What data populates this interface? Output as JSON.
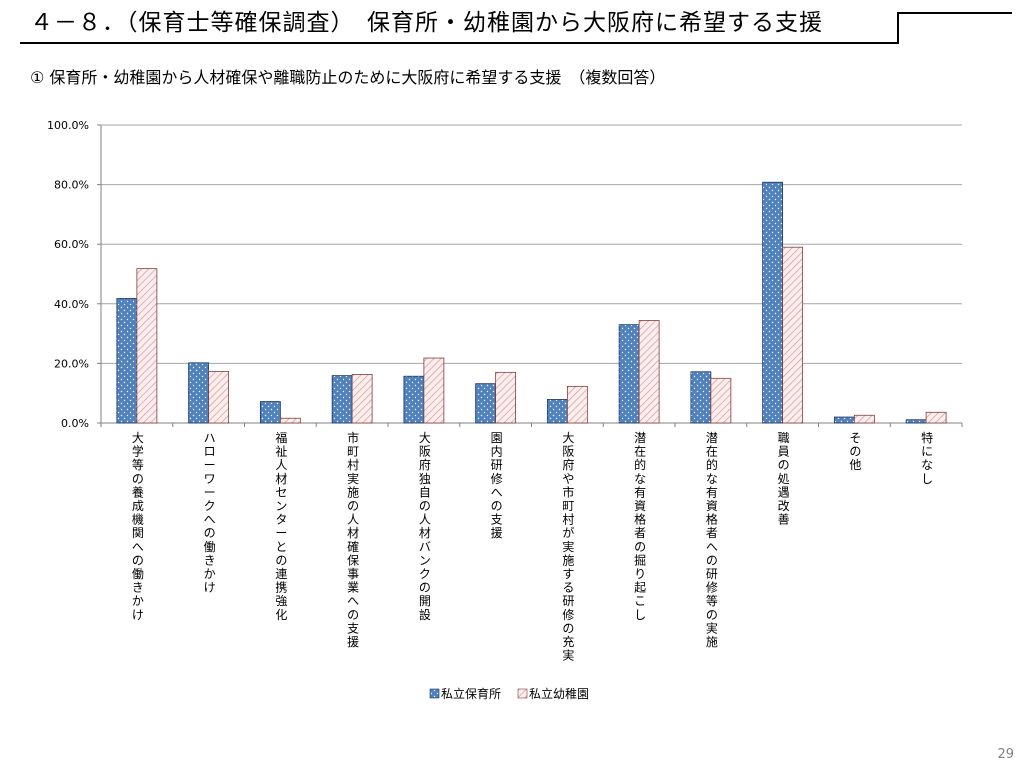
{
  "header": {
    "title": "４－８．（保育士等確保調査）　保育所・幼稚園から大阪府に希望する支援",
    "page_number": "29"
  },
  "chart_data": {
    "type": "bar",
    "title": "① 保育所・幼稚園から人材確保や離職防止のために大阪府に希望する支援　（複数回答）",
    "categories": [
      "大学等の養成機関への働きかけ",
      "ハローワークへの働きかけ",
      "福祉人材センターとの連携強化",
      "市町村実施の人材確保事業への支援",
      "大阪府独自の人材バンクの開設",
      "園内研修への支援",
      "大阪府や市町村が実施する研修の充実",
      "潜在的な有資格者の掘り起こし",
      "潜在的な有資格者への研修等の実施",
      "職員の処遇改善",
      "その他",
      "特になし"
    ],
    "series": [
      {
        "name": "私立保育所",
        "color": "#4f81bd",
        "values": [
          41.8,
          20.2,
          7.2,
          15.9,
          15.7,
          13.2,
          7.9,
          33.0,
          17.2,
          80.8,
          2.0,
          1.1
        ]
      },
      {
        "name": "私立幼稚園",
        "color": "#f2dcdb",
        "values": [
          51.8,
          17.3,
          1.6,
          16.3,
          21.8,
          17.0,
          12.3,
          34.4,
          15.0,
          59.0,
          2.6,
          3.6
        ]
      }
    ],
    "ylim": [
      0,
      100
    ],
    "yticks": [
      "0.0%",
      "20.0%",
      "40.0%",
      "60.0%",
      "80.0%",
      "100.0%"
    ],
    "grid": true,
    "legend_position": "bottom"
  }
}
